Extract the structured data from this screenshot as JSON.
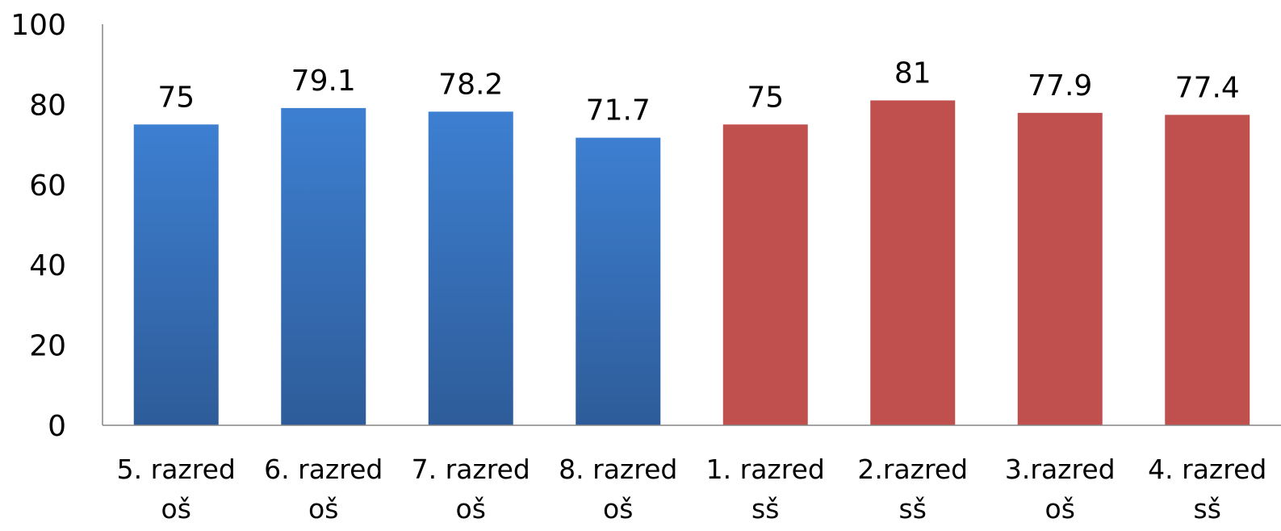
{
  "chart_data": {
    "type": "bar",
    "title": "",
    "xlabel": "",
    "ylabel": "",
    "ylim": [
      0,
      100
    ],
    "yticks": [
      "0",
      "20",
      "40",
      "60",
      "80",
      "100"
    ],
    "grid": false,
    "legend": "none",
    "categories": [
      [
        "5. razred",
        "oš"
      ],
      [
        "6. razred",
        "oš"
      ],
      [
        "7. razred",
        "oš"
      ],
      [
        "8. razred",
        "oš"
      ],
      [
        "1. razred",
        "sš"
      ],
      [
        "2.razred",
        "sš"
      ],
      [
        "3.razred",
        "oš"
      ],
      [
        "4. razred",
        "sš"
      ]
    ],
    "values": [
      75,
      79.1,
      78.2,
      71.7,
      75,
      81,
      77.9,
      77.4
    ],
    "value_labels": [
      "75",
      "79.1",
      "78.2",
      "71.7",
      "75",
      "81",
      "77.9",
      "77.4"
    ],
    "bar_colors": [
      "#3a78c3",
      "#3a78c3",
      "#3a78c3",
      "#3a78c3",
      "#c0504d",
      "#c0504d",
      "#c0504d",
      "#c0504d"
    ],
    "colors": {
      "blue_top": "#3d7fd1",
      "blue_bottom": "#2e5c99",
      "red": "#c0504d",
      "axis": "#868686"
    }
  }
}
